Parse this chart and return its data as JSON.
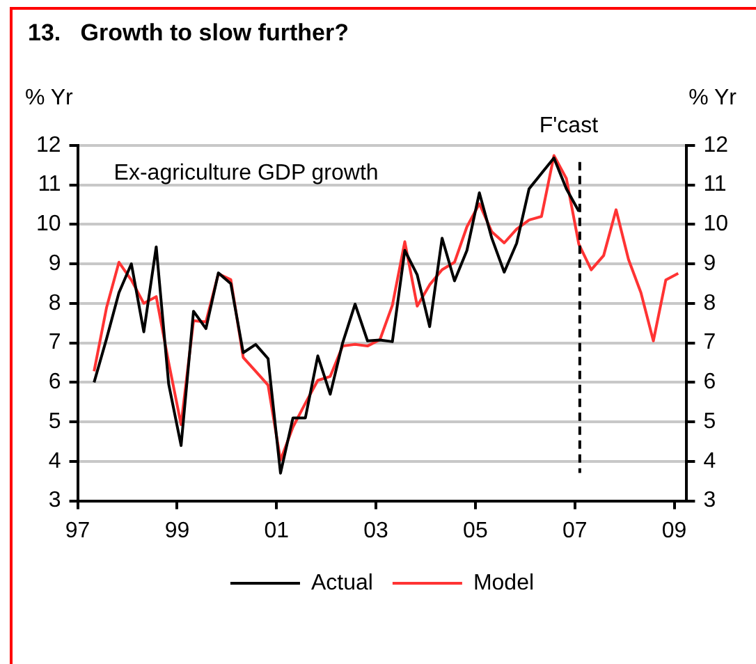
{
  "chart_data": {
    "type": "line",
    "title": "13.   Growth to slow further?",
    "ylabel": "% Yr",
    "y2label": "% Yr",
    "x": [
      1997.33,
      1997.58,
      1997.83,
      1998.08,
      1998.33,
      1998.58,
      1998.83,
      1999.08,
      1999.33,
      1999.58,
      1999.83,
      2000.08,
      2000.33,
      2000.58,
      2000.83,
      2001.08,
      2001.33,
      2001.58,
      2001.83,
      2002.08,
      2002.33,
      2002.58,
      2002.83,
      2003.08,
      2003.33,
      2003.58,
      2003.83,
      2004.08,
      2004.33,
      2004.58,
      2004.83,
      2005.08,
      2005.33,
      2005.58,
      2005.83,
      2006.08,
      2006.33,
      2006.58,
      2006.83,
      2007.08,
      2007.33,
      2007.58,
      2007.83,
      2008.08,
      2008.33,
      2008.58,
      2008.83,
      2009.08
    ],
    "series": [
      {
        "name": "Actual",
        "color": "#000000",
        "values": [
          6.0,
          7.1,
          8.27,
          9.0,
          7.28,
          9.43,
          5.96,
          4.4,
          7.8,
          7.36,
          8.77,
          8.5,
          6.75,
          6.96,
          6.6,
          3.7,
          5.1,
          5.1,
          6.67,
          5.7,
          7.0,
          7.98,
          7.05,
          7.07,
          7.03,
          9.34,
          8.72,
          7.41,
          9.65,
          8.57,
          9.34,
          10.8,
          9.65,
          8.79,
          9.52,
          10.9,
          11.29,
          11.68,
          10.9,
          10.33,
          null,
          null,
          null,
          null,
          null,
          null,
          null,
          null
        ]
      },
      {
        "name": "Model",
        "color": "#ff3333",
        "values": [
          6.28,
          7.89,
          9.04,
          8.59,
          8.0,
          8.17,
          6.5,
          4.93,
          7.56,
          7.53,
          8.75,
          8.6,
          6.63,
          6.28,
          5.93,
          4.03,
          4.87,
          5.47,
          6.05,
          6.15,
          6.92,
          6.96,
          6.92,
          7.08,
          7.95,
          9.56,
          7.93,
          8.47,
          8.85,
          9.04,
          9.94,
          10.52,
          9.81,
          9.53,
          9.88,
          10.11,
          10.2,
          11.74,
          11.16,
          9.5,
          8.85,
          9.21,
          10.37,
          9.11,
          8.27,
          7.05,
          8.59,
          8.76
        ]
      }
    ],
    "xlim": [
      1997,
      2009.25
    ],
    "xticks": [
      {
        "value": 1997,
        "label": "97"
      },
      {
        "value": 1999,
        "label": "99"
      },
      {
        "value": 2001,
        "label": "01"
      },
      {
        "value": 2003,
        "label": "03"
      },
      {
        "value": 2005,
        "label": "05"
      },
      {
        "value": 2007,
        "label": "07"
      },
      {
        "value": 2009,
        "label": "09"
      }
    ],
    "ylim": [
      3,
      12
    ],
    "yticks": [
      3,
      4,
      5,
      6,
      7,
      8,
      9,
      10,
      11,
      12
    ],
    "y2lim": [
      3,
      12
    ],
    "y2ticks": [
      3,
      4,
      5,
      6,
      7,
      8,
      9,
      10,
      11,
      12
    ],
    "ref_lines": [
      {
        "axis": "x",
        "value": 2007.1,
        "label": "F'cast",
        "line_style": "dashed",
        "color": "#000000"
      }
    ],
    "annotations": [
      "Ex-agriculture GDP growth"
    ],
    "grid": "y",
    "legend": "bottom",
    "marker": "none",
    "line_style": "solid"
  }
}
